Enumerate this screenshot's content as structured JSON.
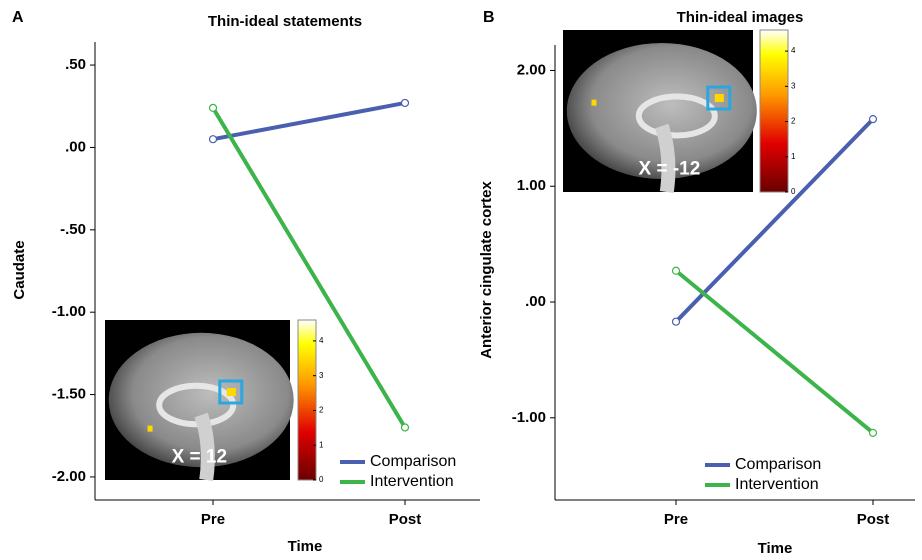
{
  "chart_data": [
    {
      "type": "line",
      "panel_label": "A",
      "title": "Thin-ideal statements",
      "xlabel": "Time",
      "ylabel": "Caudate",
      "categories": [
        "Pre",
        "Post"
      ],
      "series": [
        {
          "name": "Comparison",
          "color": "#4a5fb0",
          "values": [
            0.05,
            0.27
          ]
        },
        {
          "name": "Intervention",
          "color": "#3cb44a",
          "values": [
            0.24,
            -1.7
          ]
        }
      ],
      "ylim": [
        -2.14,
        0.64
      ],
      "yticks": [
        {
          "value": -2,
          "label": "-2.00"
        },
        {
          "value": -1.5,
          "label": "-1.50"
        },
        {
          "value": -1,
          "label": "-1.00"
        },
        {
          "value": -0.5,
          "label": "-.50"
        },
        {
          "value": 0,
          "label": ".00"
        },
        {
          "value": 0.5,
          "label": ".50"
        }
      ],
      "legend": "lower right",
      "inset": {
        "label": "X = 12",
        "clim": [
          0,
          4.6
        ],
        "colorbar_ticks": [
          0,
          1,
          2,
          3,
          4
        ]
      }
    },
    {
      "type": "line",
      "panel_label": "B",
      "title": "Thin-ideal images",
      "xlabel": "Time",
      "ylabel": "Anterior cingulate cortex",
      "categories": [
        "Pre",
        "Post"
      ],
      "series": [
        {
          "name": "Comparison",
          "color": "#4a5fb0",
          "values": [
            -0.17,
            1.58
          ]
        },
        {
          "name": "Intervention",
          "color": "#3cb44a",
          "values": [
            0.27,
            -1.13
          ]
        }
      ],
      "ylim": [
        -1.71,
        2.22
      ],
      "yticks": [
        {
          "value": -1,
          "label": "-1.00"
        },
        {
          "value": 0,
          "label": ".00"
        },
        {
          "value": 1,
          "label": "1.00"
        },
        {
          "value": 2,
          "label": "2.00"
        }
      ],
      "legend": "lower right",
      "inset": {
        "label": "X = -12",
        "clim": [
          0,
          4.6
        ],
        "colorbar_ticks": [
          0,
          1,
          2,
          3,
          4
        ]
      }
    }
  ]
}
